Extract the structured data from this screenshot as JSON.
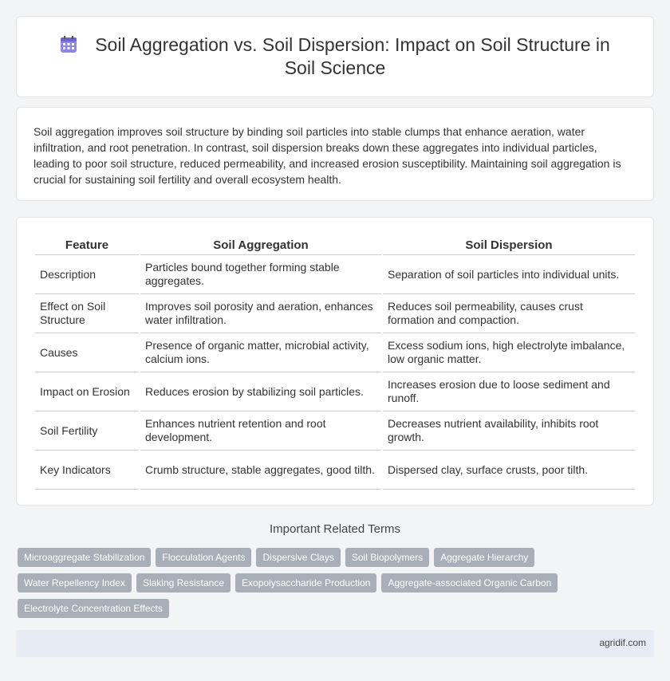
{
  "header": {
    "title": "Soil Aggregation vs. Soil Dispersion: Impact on Soil Structure in Soil Science",
    "icon": "calendar-icon"
  },
  "intro": {
    "text": "Soil aggregation improves soil structure by binding soil particles into stable clumps that enhance aeration, water infiltration, and root penetration. In contrast, soil dispersion breaks down these aggregates into individual particles, leading to poor soil structure, reduced permeability, and increased erosion susceptibility. Maintaining soil aggregation is crucial for sustaining soil fertility and overall ecosystem health."
  },
  "table": {
    "headers": [
      "Feature",
      "Soil Aggregation",
      "Soil Dispersion"
    ],
    "rows": [
      [
        "Description",
        "Particles bound together forming stable aggregates.",
        "Separation of soil particles into individual units."
      ],
      [
        "Effect on Soil Structure",
        "Improves soil porosity and aeration, enhances water infiltration.",
        "Reduces soil permeability, causes crust formation and compaction."
      ],
      [
        "Causes",
        "Presence of organic matter, microbial activity, calcium ions.",
        "Excess sodium ions, high electrolyte imbalance, low organic matter."
      ],
      [
        "Impact on Erosion",
        "Reduces erosion by stabilizing soil particles.",
        "Increases erosion due to loose sediment and runoff."
      ],
      [
        "Soil Fertility",
        "Enhances nutrient retention and root development.",
        "Decreases nutrient availability, inhibits root growth."
      ],
      [
        "Key Indicators",
        "Crumb structure, stable aggregates, good tilth.",
        "Dispersed clay, surface crusts, poor tilth."
      ]
    ]
  },
  "related": {
    "title": "Important Related Terms",
    "tags": [
      "Microaggregate Stabilization",
      "Flocculation Agents",
      "Dispersive Clays",
      "Soil Biopolymers",
      "Aggregate Hierarchy",
      "Water Repellency Index",
      "Slaking Resistance",
      "Exopolysaccharide Production",
      "Aggregate-associated Organic Carbon",
      "Electrolyte Concentration Effects"
    ]
  },
  "footer": {
    "site": "agridif.com"
  },
  "colors": {
    "tag_bg": "#a8afb8",
    "footer_bg": "#e6ebf4",
    "icon_purple": "#7b6fd8"
  }
}
